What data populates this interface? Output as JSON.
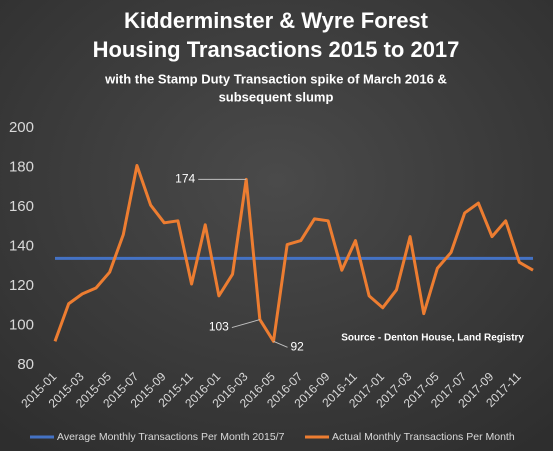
{
  "chart_data": {
    "type": "line",
    "title": [
      "Kidderminster & Wyre Forest",
      "Housing Transactions 2015 to 2017"
    ],
    "subtitle": [
      "with the Stamp Duty Transaction spike of March 2016 &",
      "subsequent slump"
    ],
    "annotation": "Source - Denton House, Land Registry",
    "categories": [
      "2015-01",
      null,
      "2015-03",
      null,
      "2015-05",
      null,
      "2015-07",
      null,
      "2015-09",
      null,
      "2015-11",
      null,
      "2016-01",
      null,
      "2016-03",
      null,
      "2016-05",
      null,
      "2016-07",
      null,
      "2016-09",
      null,
      "2016-11",
      null,
      "2017-01",
      null,
      "2017-03",
      null,
      "2017-05",
      null,
      "2017-07",
      null,
      "2017-09",
      null,
      "2017-11",
      null
    ],
    "series": [
      {
        "name": "Average Monthly Transactions Per Month 2015/7",
        "color": "#4472c4",
        "values": [
          134,
          134,
          134,
          134,
          134,
          134,
          134,
          134,
          134,
          134,
          134,
          134,
          134,
          134,
          134,
          134,
          134,
          134,
          134,
          134,
          134,
          134,
          134,
          134,
          134,
          134,
          134,
          134,
          134,
          134,
          134,
          134,
          134,
          134,
          134,
          134
        ]
      },
      {
        "name": "Actual Monthly Transactions Per Month",
        "color": "#ed7d31",
        "values": [
          92,
          111,
          116,
          119,
          127,
          146,
          181,
          161,
          152,
          153,
          121,
          151,
          115,
          126,
          174,
          103,
          92,
          141,
          143,
          154,
          153,
          128,
          143,
          115,
          109,
          118,
          145,
          106,
          129,
          137,
          157,
          162,
          145,
          153,
          132,
          128
        ]
      }
    ],
    "ylim": [
      80,
      200
    ],
    "yticks": [
      80,
      100,
      120,
      140,
      160,
      180,
      200
    ],
    "grid": false
  }
}
